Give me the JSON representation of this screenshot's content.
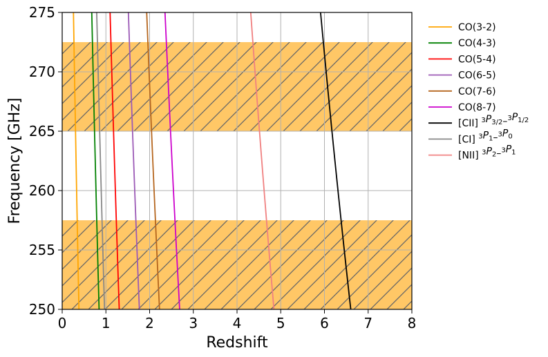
{
  "chart_data": {
    "type": "line",
    "title": "",
    "xlabel": "Redshift",
    "ylabel": "Frequency [GHz]",
    "xlim": [
      0,
      8
    ],
    "ylim": [
      250,
      275
    ],
    "xticks": [
      0,
      1,
      2,
      3,
      4,
      5,
      6,
      7,
      8
    ],
    "yticks": [
      250,
      255,
      260,
      265,
      270,
      275
    ],
    "xtick_labels": [
      "0",
      "1",
      "2",
      "3",
      "4",
      "5",
      "6",
      "7",
      "8"
    ],
    "ytick_labels": [
      "250",
      "255",
      "260",
      "265",
      "270",
      "275"
    ],
    "grid": true,
    "legend_position": "outside-right",
    "bands": [
      {
        "y0": 265.0,
        "y1": 272.5,
        "color": "#ffc766",
        "hatch": "diagonal",
        "hatch_color": "#666666"
      },
      {
        "y0": 250.0,
        "y1": 257.5,
        "color": "#ffc766",
        "hatch": "diagonal",
        "hatch_color": "#666666"
      }
    ],
    "series": [
      {
        "name": "CO(3-2)",
        "label_parts": [
          {
            "t": "CO(3-2)"
          }
        ],
        "color": "#ffa500",
        "rest_ghz": 345.796
      },
      {
        "name": "CO(4-3)",
        "label_parts": [
          {
            "t": "CO(4-3)"
          }
        ],
        "color": "#008000",
        "rest_ghz": 461.041
      },
      {
        "name": "CO(5-4)",
        "label_parts": [
          {
            "t": "CO(5-4)"
          }
        ],
        "color": "#ff0000",
        "rest_ghz": 576.268
      },
      {
        "name": "CO(6-5)",
        "label_parts": [
          {
            "t": "CO(6-5)"
          }
        ],
        "color": "#9b59b6",
        "rest_ghz": 691.473
      },
      {
        "name": "CO(7-6)",
        "label_parts": [
          {
            "t": "CO(7-6)"
          }
        ],
        "color": "#b5651d",
        "rest_ghz": 806.652
      },
      {
        "name": "CO(8-7)",
        "label_parts": [
          {
            "t": "CO(8-7)"
          }
        ],
        "color": "#cc00cc",
        "rest_ghz": 921.8
      },
      {
        "name": "[CII] 3P3/2-3P1/2",
        "label_parts": [
          {
            "t": "[CII] "
          },
          {
            "t": "3",
            "s": "sup"
          },
          {
            "t": "P",
            "s": "it"
          },
          {
            "t": "3/2",
            "s": "sub"
          },
          {
            "t": "–"
          },
          {
            "t": "3",
            "s": "sup"
          },
          {
            "t": "P",
            "s": "it"
          },
          {
            "t": "1/2",
            "s": "sub"
          }
        ],
        "color": "#000000",
        "rest_ghz": 1900.537
      },
      {
        "name": "[CI] 3P1-3P0",
        "label_parts": [
          {
            "t": "[CI] "
          },
          {
            "t": "3",
            "s": "sup"
          },
          {
            "t": "P",
            "s": "it"
          },
          {
            "t": "1",
            "s": "sub"
          },
          {
            "t": "–"
          },
          {
            "t": "3",
            "s": "sup"
          },
          {
            "t": "P",
            "s": "it"
          },
          {
            "t": "0",
            "s": "sub"
          }
        ],
        "color": "#888888",
        "rest_ghz": 492.161
      },
      {
        "name": "[NII] 3P2-3P1",
        "label_parts": [
          {
            "t": "[NII] "
          },
          {
            "t": "3",
            "s": "sup"
          },
          {
            "t": "P",
            "s": "it"
          },
          {
            "t": "2",
            "s": "sub"
          },
          {
            "t": "–"
          },
          {
            "t": "3",
            "s": "sup"
          },
          {
            "t": "P",
            "s": "it"
          },
          {
            "t": "1",
            "s": "sub"
          }
        ],
        "color": "#f08080",
        "rest_ghz": 1461.134
      }
    ]
  }
}
